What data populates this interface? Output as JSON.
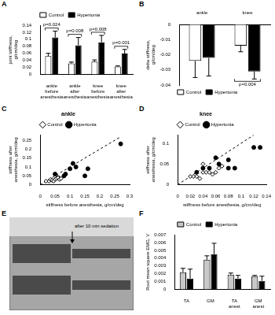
{
  "chart_data": [
    {
      "panel": "A",
      "type": "bar",
      "categories": [
        "ankle before anesthesia",
        "ankle after anesthesia",
        "knee before anesthesia",
        "knee after anesthesia"
      ],
      "series": [
        {
          "name": "Control",
          "color": "#ffffff",
          "values": [
            0.052,
            0.031,
            0.036,
            0.022
          ],
          "errors": [
            0.008,
            0.004,
            0.005,
            0.002
          ]
        },
        {
          "name": "Hypertonia",
          "color": "#000000",
          "values": [
            0.105,
            0.083,
            0.091,
            0.059
          ],
          "errors": [
            0.018,
            0.022,
            0.02,
            0.012
          ]
        }
      ],
      "y_label": "joint stiffness, g/cm/deg",
      "ylim": [
        0,
        0.14
      ],
      "yticks": [
        0,
        0.02,
        0.04,
        0.06,
        0.08,
        0.1,
        0.12,
        0.14
      ],
      "grid": false,
      "legend": "top",
      "annotations": [
        {
          "category": "ankle before anesthesia",
          "text": "p=0.024"
        },
        {
          "category": "ankle after anesthesia",
          "text": "p=0.008"
        },
        {
          "category": "knee before anesthesia",
          "text": "p=0.008"
        },
        {
          "category": "knee after anesthesia",
          "text": "p=0.001"
        }
      ]
    },
    {
      "panel": "B",
      "type": "bar",
      "categories": [
        "ankle",
        "knee"
      ],
      "series": [
        {
          "name": "Control",
          "color": "#ffffff",
          "values": [
            -0.024,
            -0.014
          ],
          "errors": [
            0.011,
            0.004
          ]
        },
        {
          "name": "Hypertonia",
          "color": "#000000",
          "values": [
            -0.022,
            -0.031
          ],
          "errors": [
            0.012,
            0.005
          ]
        }
      ],
      "y_label": "delta stiffness, g/cm/deg",
      "ylim": [
        -0.04,
        0
      ],
      "yticks": [
        -0.04,
        -0.03,
        -0.02,
        -0.01,
        0
      ],
      "grid": false,
      "legend": "bottom",
      "annotations": [
        {
          "category": "knee",
          "text": "p=0.004"
        }
      ]
    },
    {
      "panel": "C",
      "type": "scatter",
      "title": "ankle",
      "x_label": "stiffness before anesthesia, g/cm/deg",
      "y_label": "stiffness after anesthesia, g/cm/deg",
      "xlim": [
        0,
        0.3
      ],
      "xticks": [
        0,
        0.05,
        0.1,
        0.15,
        0.2,
        0.25,
        0.3
      ],
      "ylim": [
        0,
        0.28
      ],
      "yticks": [
        0,
        0.05,
        0.1,
        0.15,
        0.2,
        0.25
      ],
      "grid": false,
      "legend": "top",
      "series": [
        {
          "name": "Control",
          "color": "#ffffff",
          "marker": "diamond",
          "x": [
            0.02,
            0.03,
            0.035,
            0.04,
            0.045,
            0.05,
            0.055,
            0.06,
            0.065,
            0.07
          ],
          "values": [
            0.02,
            0.02,
            0.03,
            0.025,
            0.02,
            0.03,
            0.035,
            0.04,
            0.03,
            0.035
          ]
        },
        {
          "name": "Hypertonia",
          "color": "#000000",
          "marker": "circle",
          "x": [
            0.05,
            0.06,
            0.08,
            0.085,
            0.1,
            0.11,
            0.12,
            0.15,
            0.16,
            0.27
          ],
          "values": [
            0.06,
            0.04,
            0.05,
            0.06,
            0.09,
            0.12,
            0.1,
            0.05,
            0.09,
            0.23
          ]
        },
        {
          "type": "line",
          "line_style": "dashed",
          "color": "#000000",
          "x": [
            0,
            0.27
          ],
          "values": [
            0,
            0.27
          ]
        }
      ]
    },
    {
      "panel": "D",
      "type": "scatter",
      "title": "knee",
      "x_label": "stiffness before anesthesia, g/cm/deg",
      "y_label": "stiffness after anesthesia, g/cm/deg",
      "xlim": [
        0,
        0.14
      ],
      "xticks": [
        0,
        0.02,
        0.04,
        0.06,
        0.08,
        0.1,
        0.12,
        0.14
      ],
      "ylim": [
        0,
        0.12
      ],
      "yticks": [
        0,
        0.05,
        0.1
      ],
      "grid": false,
      "legend": "top",
      "series": [
        {
          "name": "Control",
          "color": "#ffffff",
          "marker": "diamond",
          "x": [
            0.02,
            0.025,
            0.03,
            0.035,
            0.04,
            0.045,
            0.05,
            0.055,
            0.06,
            0.065,
            0.07,
            0.04
          ],
          "values": [
            0.02,
            0.02,
            0.02,
            0.015,
            0.03,
            0.03,
            0.03,
            0.025,
            0.03,
            0.04,
            0.045,
            0.05
          ]
        },
        {
          "name": "Hypertonia",
          "color": "#000000",
          "marker": "circle",
          "x": [
            0.03,
            0.04,
            0.05,
            0.06,
            0.065,
            0.08,
            0.09,
            0.12,
            0.13,
            0.08
          ],
          "values": [
            0.03,
            0.04,
            0.04,
            0.065,
            0.05,
            0.06,
            0.04,
            0.09,
            0.09,
            0.04
          ]
        },
        {
          "type": "line",
          "line_style": "dashed",
          "color": "#000000",
          "x": [
            0,
            0.12
          ],
          "values": [
            0,
            0.12
          ]
        }
      ]
    },
    {
      "panel": "F",
      "type": "bar",
      "categories": [
        "TA",
        "GM",
        "TA anest",
        "GM anest"
      ],
      "series": [
        {
          "name": "Control",
          "color": "#c8c8c8",
          "values": [
            0.0022,
            0.0038,
            0.0019,
            0.0017
          ],
          "errors": [
            0.0005,
            0.0005,
            0.0002,
            0.0001
          ]
        },
        {
          "name": "Hypertonia",
          "color": "#000000",
          "values": [
            0.0014,
            0.0045,
            0.0014,
            0.0011
          ],
          "errors": [
            0.0012,
            0.0014,
            0.0004,
            0.0006
          ]
        }
      ],
      "y_label": "Root mean square EMG, V",
      "ylim": [
        0,
        0.007
      ],
      "yticks": [
        0,
        0.001,
        0.002,
        0.003,
        0.004,
        0.005,
        0.006,
        0.007
      ],
      "grid": false,
      "legend": "top"
    }
  ],
  "panel_E": {
    "panel": "E",
    "annotation": "after 10 min sedation"
  }
}
